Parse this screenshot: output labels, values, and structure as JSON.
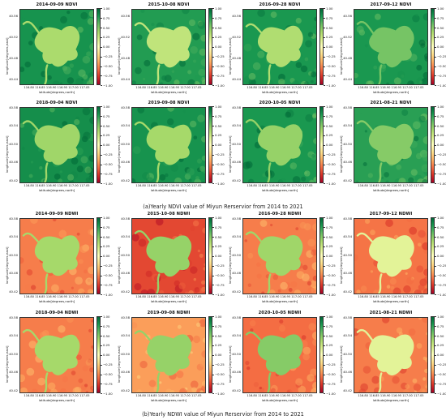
{
  "figure": {
    "captions": {
      "a": "(a)Yearly NDVI value of Miyun Rerservior from 2014 to 2021",
      "b": "(b)Yearly NDWI value of Miyun Rerservior from 2014 to 2021"
    },
    "ylabel": "longitude[degrees,east]",
    "xlabel": "latitude[degrees,north]",
    "yticks": [
      "40.58",
      "40.54",
      "40.50",
      "40.46",
      "40.42"
    ],
    "yticks_top_row": [
      "40.56",
      "40.52",
      "40.48",
      "40.44"
    ],
    "xticks": "116.80 116.85 116.90 116.95 117.00 117.05",
    "colorbar_ticks": [
      "1.00",
      "0.75",
      "0.50",
      "0.25",
      "0.00",
      "−0.25",
      "−0.50",
      "−0.75",
      "−1.00"
    ],
    "colorbar_range": [
      -1.0,
      1.0
    ],
    "colormap": [
      "#a50026",
      "#d73027",
      "#f46d43",
      "#fdae61",
      "#fee08b",
      "#ffffbf",
      "#d9ef8b",
      "#a6d96a",
      "#66bd63",
      "#1a9850",
      "#006837"
    ],
    "ndvi_panels": [
      {
        "title": "2014-09-09 NDVI",
        "water_index": 0.38,
        "land_index": 0.82
      },
      {
        "title": "2015-10-08 NDVI",
        "water_index": 0.3,
        "land_index": 0.78
      },
      {
        "title": "2016-09-28 NDVI",
        "water_index": 0.36,
        "land_index": 0.8
      },
      {
        "title": "2017-09-12 NDVI",
        "water_index": 0.55,
        "land_index": 0.8
      },
      {
        "title": "2018-09-04 NDVI",
        "water_index": 0.42,
        "land_index": 0.84
      },
      {
        "title": "2019-09-08 NDVI",
        "water_index": 0.4,
        "land_index": 0.82
      },
      {
        "title": "2020-10-05 NDVI",
        "water_index": 0.45,
        "land_index": 0.8
      },
      {
        "title": "2021-08-21 NDVI",
        "water_index": 0.5,
        "land_index": 0.76
      }
    ],
    "ndwi_panels": [
      {
        "title": "2014-09-09 NDWI",
        "water_index": 0.4,
        "land_index": -0.55
      },
      {
        "title": "2015-10-08 NDWI",
        "water_index": 0.45,
        "land_index": -0.72
      },
      {
        "title": "2016-09-28 NDWI",
        "water_index": 0.42,
        "land_index": -0.55
      },
      {
        "title": "2017-09-12 NDWI",
        "water_index": 0.15,
        "land_index": -0.58
      },
      {
        "title": "2018-09-04 NDWI",
        "water_index": 0.4,
        "land_index": -0.55
      },
      {
        "title": "2019-09-08 NDWI",
        "water_index": 0.45,
        "land_index": -0.45
      },
      {
        "title": "2020-10-05 NDWI",
        "water_index": 0.5,
        "land_index": -0.6
      },
      {
        "title": "2021-08-21 NDWI",
        "water_index": 0.15,
        "land_index": -0.55
      }
    ]
  }
}
